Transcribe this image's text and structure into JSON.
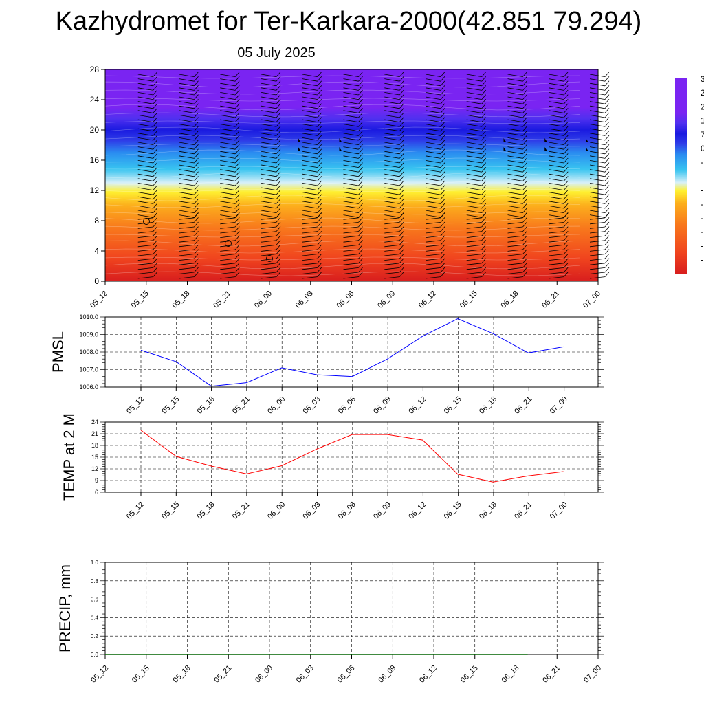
{
  "title": "Kazhydromet for Ter-Karkara-2000(42.851 79.294)",
  "subtitle": "05 July 2025",
  "colors": {
    "pmsl_line": "#0000ff",
    "temp_line": "#ff0000",
    "precip_line": "#006400",
    "grid": "#000000"
  },
  "chart_data": [
    {
      "type": "heatmap",
      "name": "cross-section",
      "x": [
        "05_12",
        "05_15",
        "05_18",
        "05_21",
        "06_00",
        "06_03",
        "06_06",
        "06_09",
        "06_12",
        "06_15",
        "06_18",
        "06_21",
        "07_00"
      ],
      "ylim": [
        0,
        28
      ],
      "yticks": [
        0,
        4,
        8,
        12,
        16,
        20,
        24,
        28
      ],
      "colorbar_labels": [
        "3",
        "2",
        "2",
        "1",
        "7",
        "0",
        "-",
        "-",
        "-",
        "-",
        "-",
        "-",
        "-",
        "-"
      ],
      "colorscale": [
        {
          "level": 0,
          "color": "#d81e1e"
        },
        {
          "level": 3,
          "color": "#f0441e"
        },
        {
          "level": 7,
          "color": "#f8781c"
        },
        {
          "level": 10,
          "color": "#fcae1c"
        },
        {
          "level": 11.8,
          "color": "#fff030"
        },
        {
          "level": 13,
          "color": "#d8f0f8"
        },
        {
          "level": 14.8,
          "color": "#38c4f0"
        },
        {
          "level": 17,
          "color": "#2a8cf0"
        },
        {
          "level": 18.6,
          "color": "#2e3ce8"
        },
        {
          "level": 20,
          "color": "#1a1ae0"
        },
        {
          "level": 21.5,
          "color": "#5030f0"
        },
        {
          "level": 23,
          "color": "#7a24f2"
        },
        {
          "level": 28,
          "color": "#7a24f2"
        }
      ]
    },
    {
      "type": "line",
      "ylabel": "PMSL",
      "categories": [
        "05_12",
        "05_15",
        "05_18",
        "05_21",
        "06_00",
        "06_03",
        "06_06",
        "06_09",
        "06_12",
        "06_15",
        "06_18",
        "06_21",
        "07_00"
      ],
      "values": [
        1008.1,
        1007.45,
        1006.05,
        1006.25,
        1007.1,
        1006.7,
        1006.6,
        1007.6,
        1008.9,
        1009.9,
        1009.05,
        1007.95,
        1008.3
      ],
      "ylim": [
        1006.0,
        1010.0
      ],
      "yticks": [
        "1006.0",
        "1007.0",
        "1008.0",
        "1009.0",
        "1010.0"
      ],
      "grid": true
    },
    {
      "type": "line",
      "ylabel": "TEMP at 2 M",
      "categories": [
        "05_12",
        "05_15",
        "05_18",
        "05_21",
        "06_00",
        "06_03",
        "06_06",
        "06_09",
        "06_12",
        "06_15",
        "06_18",
        "06_21",
        "07_00"
      ],
      "values": [
        21.9,
        15.2,
        12.7,
        10.7,
        12.8,
        17.1,
        20.8,
        20.8,
        19.4,
        10.6,
        8.6,
        10.2,
        11.3
      ],
      "ylim": [
        6,
        24
      ],
      "yticks": [
        "6",
        "9",
        "12",
        "15",
        "18",
        "21",
        "24"
      ],
      "grid": true
    },
    {
      "type": "line",
      "ylabel": "PRECIP, mm",
      "categories": [
        "05_12",
        "05_15",
        "05_18",
        "05_21",
        "06_00",
        "06_03",
        "06_06",
        "06_09",
        "06_12",
        "06_15",
        "06_18",
        "06_21",
        "07_00"
      ],
      "values": [
        0,
        0,
        0,
        0,
        0,
        0,
        0,
        0,
        0,
        0,
        0,
        0,
        0
      ],
      "ylim": [
        0,
        1.0
      ],
      "yticks": [
        "0.0",
        "0.2",
        "0.4",
        "0.6",
        "0.8",
        "1.0"
      ],
      "grid": true
    }
  ]
}
